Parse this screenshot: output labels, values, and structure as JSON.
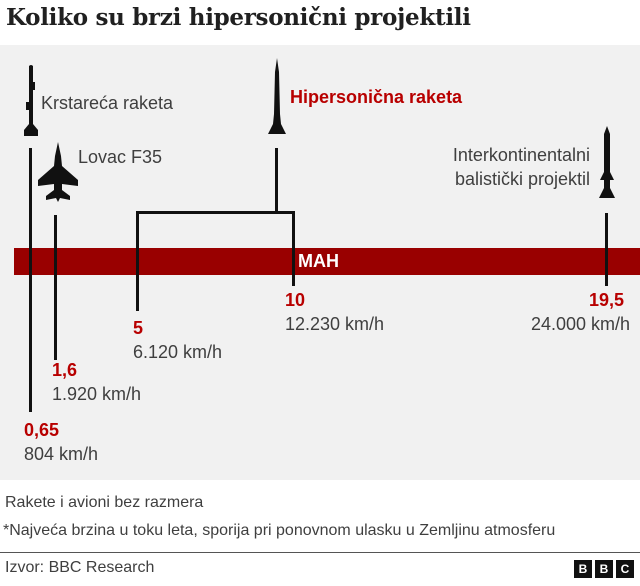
{
  "title": "Koliko su brzi hipersonični projektili",
  "colors": {
    "bar": "#990000",
    "accent_text": "#b80000",
    "panel": "#f1f1f1"
  },
  "scale_label": "MAH",
  "items": [
    {
      "name": "Krstareća raketa",
      "icon": "cruise-missile-icon",
      "mach": "0,65",
      "speed": "804 km/h"
    },
    {
      "name": "Lovac F35",
      "icon": "fighter-jet-icon",
      "mach": "1,6",
      "speed": "1.920 km/h"
    },
    {
      "name": "Hipersonična raketa",
      "icon": "hypersonic-missile-icon",
      "mach_range": [
        {
          "mach": "5",
          "speed": "6.120 km/h"
        },
        {
          "mach": "10",
          "speed": "12.230 km/h"
        }
      ]
    },
    {
      "name_lines": [
        "Interkontinentalni",
        "balistički projektil"
      ],
      "icon": "icbm-icon",
      "mach": "19,5",
      "speed": "24.000 km/h"
    }
  ],
  "notes": [
    "Rakete i avioni bez razmera",
    "*Najveća brzina u toku leta, sporija pri ponovnom ulasku u Zemljinu atmosferu"
  ],
  "source": "Izvor: BBC Research",
  "logo": [
    "B",
    "B",
    "C"
  ]
}
